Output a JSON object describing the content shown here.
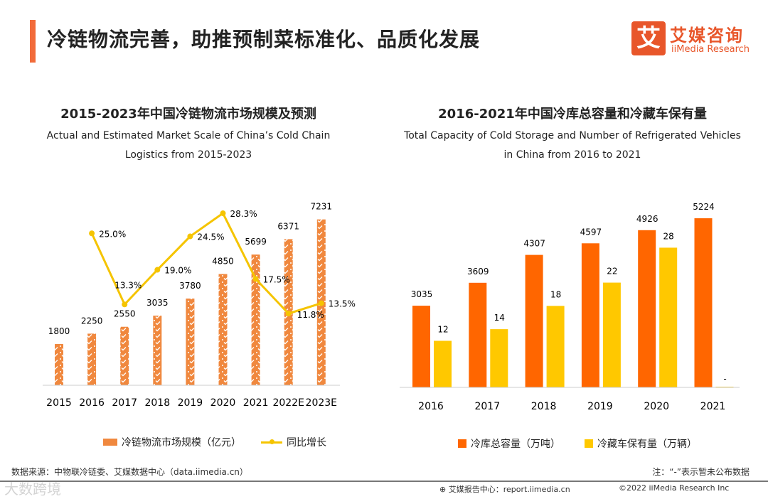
{
  "header": {
    "title": "冷链物流完善，助推预制菜标准化、品质化发展",
    "logo_mark": "艾",
    "logo_cn": "艾媒咨询",
    "logo_en": "iiMedia Research"
  },
  "chart_data": [
    {
      "type": "bar",
      "title": "2015-2023年中国冷链物流市场规模及预测",
      "subtitle_line1": "Actual and Estimated Market Scale of China’s Cold Chain",
      "subtitle_line2": "Logistics from 2015-2023",
      "categories": [
        "2015",
        "2016",
        "2017",
        "2018",
        "2019",
        "2020",
        "2021",
        "2022E",
        "2023E"
      ],
      "series": [
        {
          "name": "冷链物流市场规模（亿元）",
          "type": "bar",
          "color": "#f0883e",
          "values": [
            1800,
            2250,
            2550,
            3035,
            3780,
            4850,
            5699,
            6371,
            7231
          ],
          "labels": [
            "1800",
            "2250",
            "2550",
            "3035",
            "3780",
            "4850",
            "5699",
            "6371",
            "7231"
          ]
        },
        {
          "name": "同比增长",
          "type": "line",
          "color": "#f5c400",
          "values": [
            null,
            25.0,
            13.3,
            19.0,
            24.5,
            28.3,
            17.5,
            11.8,
            13.5
          ],
          "labels": [
            "",
            "25.0%",
            "13.3%",
            "19.0%",
            "24.5%",
            "28.3%",
            "17.5%",
            "11.8%",
            "13.5%"
          ]
        }
      ],
      "ylim": [
        0,
        7500
      ],
      "y2lim": [
        0,
        30
      ],
      "legend": "bottom"
    },
    {
      "type": "bar",
      "title": "2016-2021年中国冷库总容量和冷藏车保有量",
      "subtitle_line1": "Total Capacity of Cold Storage and Number of Refrigerated Vehicles",
      "subtitle_line2": "in China from 2016 to 2021",
      "categories": [
        "2016",
        "2017",
        "2018",
        "2019",
        "2020",
        "2021"
      ],
      "series": [
        {
          "name": "冷库总容量（万吨）",
          "color": "#ff6600",
          "values": [
            3035,
            3609,
            4307,
            4597,
            4926,
            5224
          ],
          "labels": [
            "3035",
            "3609",
            "4307",
            "4597",
            "4926",
            "5224"
          ]
        },
        {
          "name": "冷藏车保有量（万辆）",
          "color": "#ffc800",
          "values": [
            12,
            14,
            18,
            22,
            28,
            null
          ],
          "labels": [
            "12",
            "14",
            "18",
            "22",
            "28",
            "-"
          ]
        }
      ],
      "ylim": [
        990,
        5500
      ],
      "y2lim": [
        4,
        31
      ],
      "legend": "bottom"
    }
  ],
  "footer": {
    "source": "数据来源：中物联冷链委、艾媒数据中心（data.iimedia.cn）",
    "note": "注：“-”表示暂未公布数据",
    "report": "艾媒报告中心：report.iimedia.cn",
    "copyright": "©2022  iiMedia Research  Inc",
    "watermark": "大数跨境"
  }
}
